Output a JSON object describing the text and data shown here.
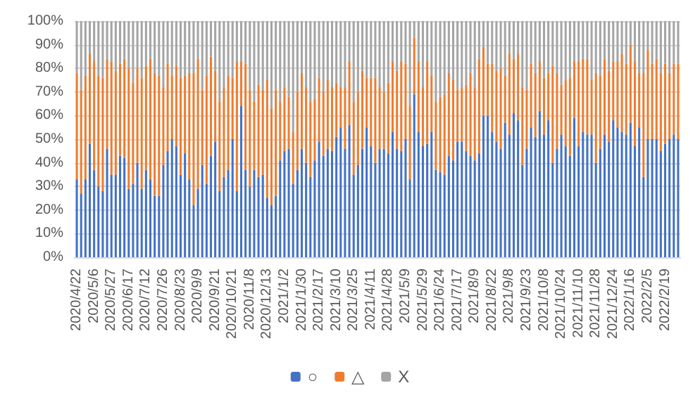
{
  "chart_data": {
    "type": "bar",
    "stacked": true,
    "categories": [
      "2020/4/22",
      null,
      null,
      null,
      "2020/5/6",
      null,
      null,
      null,
      "2020/5/27",
      null,
      null,
      null,
      "2020/6/17",
      null,
      null,
      null,
      "2020/7/12",
      null,
      null,
      null,
      "2020/7/26",
      null,
      null,
      null,
      "2020/8/23",
      null,
      null,
      null,
      "2020/9/9",
      null,
      null,
      null,
      "2020/9/21",
      null,
      null,
      null,
      "2020/10/21",
      null,
      null,
      null,
      "2020/11/8",
      null,
      null,
      null,
      "2020/12/13",
      null,
      null,
      null,
      "2021/1/2",
      null,
      null,
      null,
      "2021/1/30",
      null,
      null,
      null,
      "2021/2/17",
      null,
      null,
      null,
      "2021/3/10",
      null,
      null,
      null,
      "2021/3/25",
      null,
      null,
      null,
      "2021/4/11",
      null,
      null,
      null,
      "2021/4/28",
      null,
      null,
      null,
      "2021/5/9",
      null,
      null,
      null,
      "2021/5/29",
      null,
      null,
      null,
      "2021/6/24",
      null,
      null,
      null,
      "2021/7/17",
      null,
      null,
      null,
      "2021/8/9",
      null,
      null,
      null,
      "2021/8/22",
      null,
      null,
      null,
      "2021/9/8",
      null,
      null,
      null,
      "2021/9/23",
      null,
      null,
      null,
      "2021/10/8",
      null,
      null,
      null,
      "2021/10/24",
      null,
      null,
      null,
      "2021/11/10",
      null,
      null,
      null,
      "2021/11/28",
      null,
      null,
      null,
      "2021/12/24",
      null,
      null,
      null,
      "2022/1/16",
      null,
      null,
      null,
      "2022/2/5",
      null,
      null,
      null,
      "2022/2/19",
      null,
      null,
      null
    ],
    "series": [
      {
        "name": "○",
        "color": "#4472c4",
        "values": [
          33,
          27,
          33,
          48,
          37,
          30,
          28,
          46,
          35,
          35,
          43,
          42,
          29,
          31,
          40,
          29,
          37,
          33,
          26,
          26,
          39,
          45,
          50,
          47,
          35,
          44,
          33,
          22,
          29,
          39,
          31,
          43,
          49,
          28,
          34,
          37,
          50,
          28,
          64,
          37,
          30,
          37,
          34,
          35,
          25,
          22,
          26,
          41,
          45,
          46,
          31,
          37,
          46,
          40,
          34,
          41,
          49,
          43,
          46,
          45,
          51,
          55,
          46,
          56,
          35,
          39,
          46,
          55,
          47,
          40,
          46,
          46,
          44,
          53,
          46,
          45,
          50,
          33,
          69,
          53,
          47,
          48,
          53,
          37,
          36,
          35,
          43,
          41,
          49,
          49,
          45,
          43,
          41,
          44,
          60,
          60,
          53,
          49,
          46,
          57,
          52,
          61,
          58,
          39,
          46,
          55,
          51,
          62,
          52,
          58,
          40,
          46,
          52,
          47,
          43,
          59,
          47,
          53,
          52,
          52,
          40,
          46,
          52,
          49,
          58,
          55,
          53,
          52,
          57,
          47,
          55,
          34,
          50,
          50,
          50,
          45,
          48,
          50,
          52,
          50
        ]
      },
      {
        "name": "△",
        "color": "#ed7d31",
        "values": [
          45,
          44,
          44,
          38,
          46,
          47,
          48,
          38,
          48,
          44,
          39,
          42,
          51,
          43,
          40,
          47,
          44,
          51,
          52,
          51,
          33,
          37,
          27,
          34,
          41,
          33,
          45,
          56,
          55,
          32,
          46,
          42,
          30,
          38,
          38,
          40,
          26,
          55,
          19,
          45,
          41,
          29,
          39,
          36,
          50,
          41,
          45,
          25,
          27,
          22,
          22,
          33,
          32,
          32,
          32,
          26,
          27,
          27,
          29,
          27,
          23,
          17,
          26,
          27,
          31,
          31,
          33,
          21,
          29,
          36,
          26,
          24,
          30,
          30,
          33,
          38,
          32,
          31,
          24,
          30,
          25,
          35,
          24,
          29,
          32,
          34,
          35,
          34,
          22,
          23,
          28,
          35,
          31,
          40,
          29,
          22,
          29,
          30,
          34,
          20,
          34,
          23,
          28,
          33,
          25,
          27,
          27,
          21,
          24,
          20,
          41,
          32,
          21,
          28,
          33,
          24,
          36,
          31,
          32,
          23,
          38,
          31,
          32,
          30,
          25,
          28,
          33,
          30,
          33,
          36,
          23,
          44,
          38,
          32,
          34,
          33,
          34,
          28,
          30,
          32
        ]
      },
      {
        "name": "X",
        "color": "#a5a5a5",
        "values": [
          22,
          29,
          23,
          14,
          17,
          23,
          24,
          16,
          17,
          21,
          18,
          16,
          20,
          26,
          20,
          24,
          19,
          16,
          22,
          23,
          28,
          18,
          23,
          19,
          24,
          23,
          22,
          22,
          16,
          29,
          23,
          15,
          21,
          34,
          28,
          23,
          24,
          17,
          17,
          18,
          29,
          34,
          27,
          29,
          25,
          37,
          29,
          34,
          28,
          32,
          47,
          30,
          22,
          28,
          34,
          33,
          24,
          30,
          25,
          28,
          26,
          28,
          28,
          17,
          34,
          30,
          21,
          24,
          24,
          24,
          28,
          30,
          26,
          17,
          21,
          17,
          18,
          36,
          7,
          17,
          28,
          17,
          23,
          34,
          32,
          31,
          22,
          25,
          29,
          28,
          27,
          22,
          28,
          16,
          11,
          18,
          18,
          21,
          20,
          23,
          14,
          16,
          14,
          28,
          29,
          18,
          22,
          17,
          24,
          22,
          19,
          22,
          27,
          25,
          24,
          17,
          17,
          16,
          16,
          25,
          22,
          23,
          16,
          21,
          17,
          17,
          14,
          18,
          10,
          17,
          22,
          22,
          12,
          18,
          16,
          22,
          18,
          22,
          18,
          18
        ]
      }
    ],
    "ylim": [
      0,
      100
    ],
    "yticks": [
      {
        "value": 0,
        "label": "0%"
      },
      {
        "value": 10,
        "label": "10%"
      },
      {
        "value": 20,
        "label": "20%"
      },
      {
        "value": 30,
        "label": "30%"
      },
      {
        "value": 40,
        "label": "40%"
      },
      {
        "value": 50,
        "label": "50%"
      },
      {
        "value": 60,
        "label": "60%"
      },
      {
        "value": 70,
        "label": "70%"
      },
      {
        "value": 80,
        "label": "80%"
      },
      {
        "value": 90,
        "label": "90%"
      },
      {
        "value": 100,
        "label": "100%"
      }
    ],
    "grid": "y",
    "legend": "bottom"
  }
}
